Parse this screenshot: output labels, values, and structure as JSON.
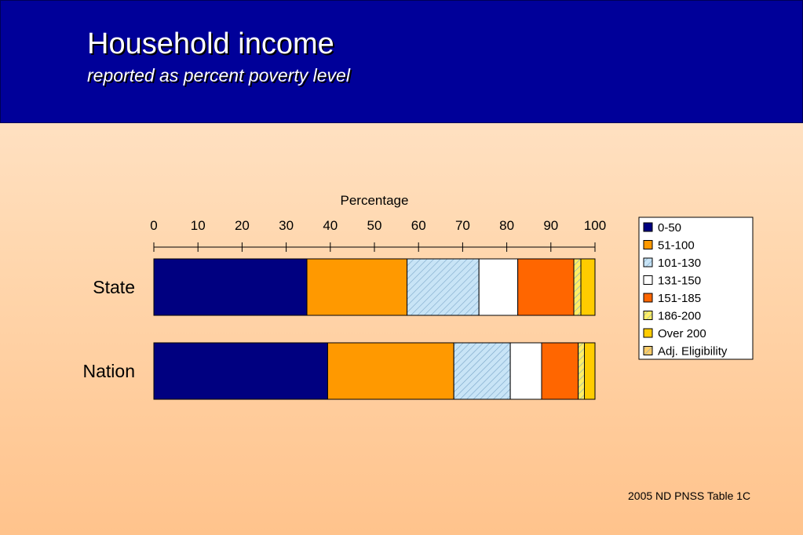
{
  "header": {
    "title": "Household income",
    "subtitle": "reported as percent poverty level",
    "background": "#000099"
  },
  "source": "2005 ND PNSS Table 1C",
  "chart_data": {
    "type": "bar",
    "orientation": "horizontal",
    "stacked": true,
    "xlabel": "Percentage",
    "xlim": [
      0,
      100
    ],
    "xticks": [
      0,
      10,
      20,
      30,
      40,
      50,
      60,
      70,
      80,
      90,
      100
    ],
    "categories": [
      "State",
      "Nation"
    ],
    "legend_position": "right",
    "series": [
      {
        "name": "0-50",
        "color": "#000080",
        "pattern": "solid",
        "values": [
          34.7,
          39.4
        ]
      },
      {
        "name": "51-100",
        "color": "#ff9900",
        "pattern": "solid",
        "values": [
          22.7,
          28.6
        ]
      },
      {
        "name": "101-130",
        "color": "#c8e4f6",
        "pattern": "hatch",
        "values": [
          16.3,
          12.8
        ]
      },
      {
        "name": "131-150",
        "color": "#ffffff",
        "pattern": "solid",
        "values": [
          8.8,
          7.1
        ]
      },
      {
        "name": "151-185",
        "color": "#ff6600",
        "pattern": "solid",
        "values": [
          12.7,
          8.3
        ]
      },
      {
        "name": "186-200",
        "color": "#ffee66",
        "pattern": "hatch",
        "values": [
          1.6,
          1.4
        ]
      },
      {
        "name": "Over 200",
        "color": "#ffcc00",
        "pattern": "solid",
        "values": [
          3.2,
          2.4
        ]
      },
      {
        "name": "Adj. Eligibility",
        "color": "#ffcc66",
        "pattern": "hatch",
        "values": [
          0,
          0
        ]
      }
    ]
  }
}
